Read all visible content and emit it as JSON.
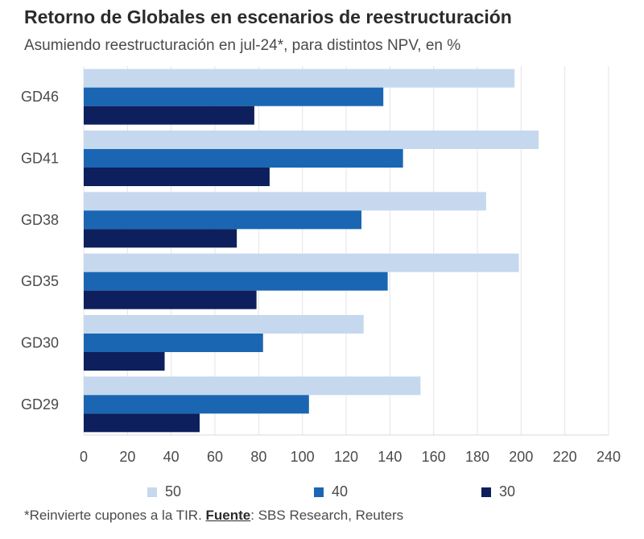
{
  "chart_data": {
    "type": "bar",
    "orientation": "horizontal",
    "title": "Retorno de Globales en escenarios de reestructuración",
    "subtitle": "Asumiendo reestructuración en jul-24*, para distintos NPV, en %",
    "categories": [
      "GD46",
      "GD41",
      "GD38",
      "GD35",
      "GD30",
      "GD29"
    ],
    "series": [
      {
        "name": "50",
        "color": "#c6d8ee",
        "values": [
          197,
          208,
          184,
          199,
          128,
          154
        ]
      },
      {
        "name": "40",
        "color": "#1a66b3",
        "values": [
          137,
          146,
          127,
          139,
          82,
          103
        ]
      },
      {
        "name": "30",
        "color": "#0d1f5c",
        "values": [
          78,
          85,
          70,
          79,
          37,
          53
        ]
      }
    ],
    "x_ticks": [
      "0",
      "20",
      "40",
      "60",
      "80",
      "100",
      "120",
      "140",
      "160",
      "180",
      "200",
      "220",
      "240"
    ],
    "xlim": [
      0,
      240
    ],
    "xlabel": "",
    "ylabel": "",
    "legend_position": "bottom"
  },
  "footnote": {
    "prefix": "*Reinvierte cupones a la TIR. ",
    "source_label": "Fuente",
    "source_text": ": SBS Research, Reuters"
  }
}
